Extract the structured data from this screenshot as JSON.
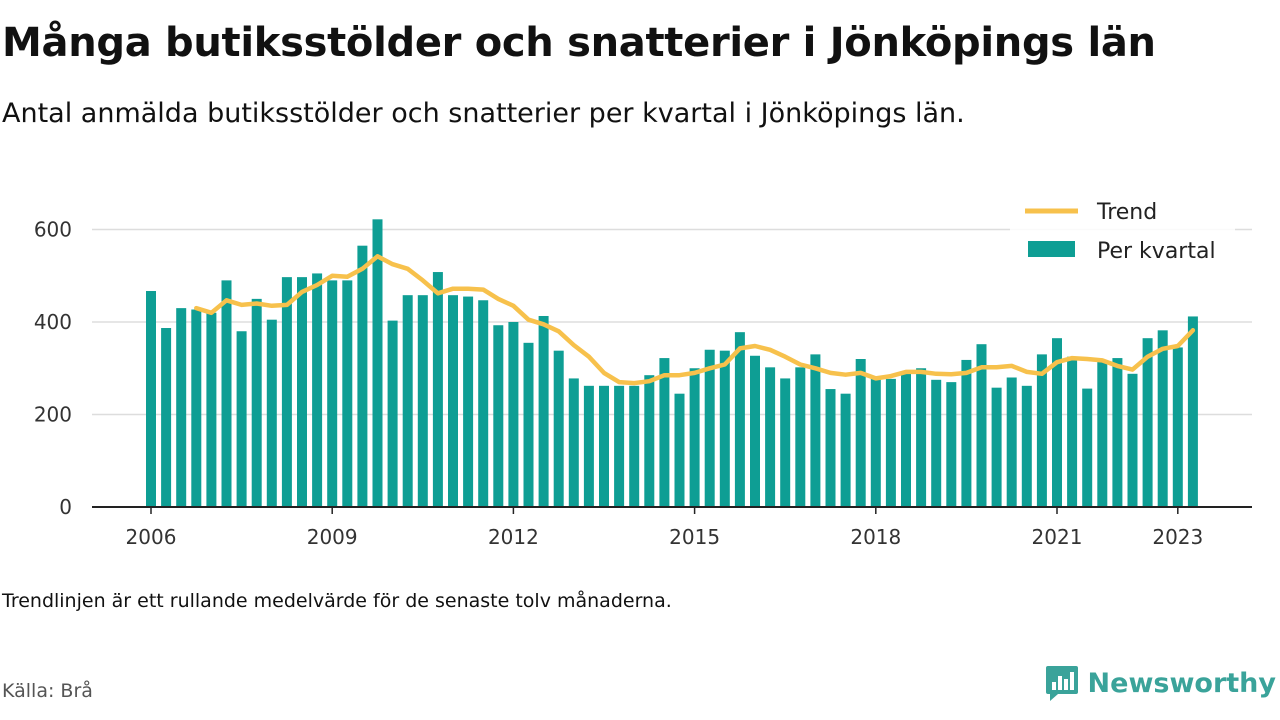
{
  "header": {
    "title": "Många butiksstölder och snatterier i Jönköpings län",
    "subtitle": "Antal anmälda butiksstölder och snatterier per kvartal i Jönköpings län."
  },
  "footer": {
    "note": "Trendlinjen är ett rullande medelvärde för de senaste tolv månaderna.",
    "source": "Källa: Brå",
    "brand": "Newsworthy"
  },
  "colors": {
    "bar": "#0e9e94",
    "trend": "#f7c14c",
    "grid": "#dddddd",
    "axis": "#222222",
    "brand": "#3aa39a"
  },
  "chart_data": {
    "type": "bar",
    "x_start": "2006 Q1",
    "ylim": [
      0,
      640
    ],
    "yticks": [
      0,
      200,
      400,
      600
    ],
    "xticks": [
      "2006",
      "2009",
      "2012",
      "2015",
      "2018",
      "2021",
      "2023"
    ],
    "grid": true,
    "legend_position": "top-right",
    "series": [
      {
        "name": "Per kvartal",
        "type": "bar",
        "values": [
          467,
          387,
          430,
          427,
          420,
          490,
          380,
          450,
          405,
          497,
          497,
          505,
          490,
          490,
          565,
          622,
          403,
          458,
          458,
          508,
          458,
          455,
          447,
          393,
          400,
          355,
          413,
          338,
          278,
          262,
          262,
          262,
          262,
          285,
          322,
          245,
          300,
          340,
          338,
          378,
          327,
          302,
          278,
          302,
          330,
          255,
          245,
          320,
          280,
          277,
          290,
          300,
          275,
          270,
          318,
          352,
          258,
          280,
          262,
          330,
          365,
          325,
          256,
          317,
          322,
          288,
          365,
          382,
          345,
          412
        ]
      },
      {
        "name": "Trend",
        "type": "line",
        "start_index": 3,
        "values": [
          430,
          420,
          447,
          437,
          440,
          435,
          437,
          465,
          480,
          500,
          498,
          515,
          542,
          525,
          515,
          490,
          462,
          472,
          472,
          470,
          450,
          435,
          405,
          395,
          380,
          350,
          325,
          290,
          270,
          268,
          272,
          285,
          285,
          290,
          300,
          308,
          343,
          348,
          340,
          325,
          308,
          300,
          290,
          286,
          290,
          278,
          283,
          292,
          292,
          288,
          287,
          290,
          302,
          302,
          305,
          292,
          288,
          313,
          322,
          320,
          317,
          305,
          297,
          325,
          342,
          348,
          382
        ]
      }
    ]
  }
}
